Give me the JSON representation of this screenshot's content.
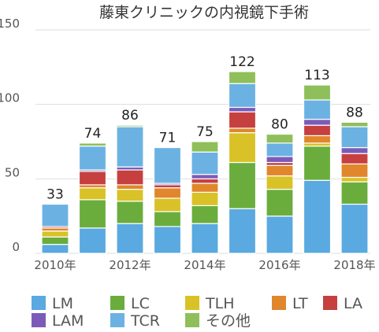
{
  "chart_data": {
    "type": "bar",
    "stacked": true,
    "title": "藤東クリニックの内視鏡下手術",
    "categories": [
      "2010",
      "2011",
      "2012",
      "2013",
      "2014",
      "2015",
      "2016",
      "2017",
      "2018"
    ],
    "x_tick_labels": [
      "2010年",
      "",
      "2012年",
      "",
      "2014年",
      "",
      "2016年",
      "",
      "2018年"
    ],
    "y_ticks": [
      "0",
      "50",
      "100",
      "150"
    ],
    "ylim": [
      0,
      150
    ],
    "grid": true,
    "legend_position": "bottom",
    "totals": [
      33,
      74,
      86,
      71,
      75,
      122,
      80,
      113,
      88
    ],
    "series": [
      {
        "name": "LM",
        "color": "#5aa9e0",
        "values": [
          6,
          17,
          20,
          18,
          20,
          30,
          25,
          49,
          33
        ]
      },
      {
        "name": "LC",
        "color": "#6aad3d",
        "values": [
          5,
          19,
          15,
          10,
          12,
          31,
          18,
          23,
          15
        ]
      },
      {
        "name": "TLH",
        "color": "#d9c227",
        "values": [
          4,
          8,
          8,
          9,
          9,
          20,
          9,
          2,
          3
        ]
      },
      {
        "name": "LT",
        "color": "#e0862c",
        "values": [
          2,
          2,
          3,
          7,
          6,
          3,
          7,
          5,
          9
        ]
      },
      {
        "name": "LA",
        "color": "#c64040",
        "values": [
          1,
          9,
          10,
          2,
          3,
          11,
          2,
          7,
          7
        ]
      },
      {
        "name": "LAM",
        "color": "#7a5cb8",
        "values": [
          0,
          1,
          2,
          1,
          3,
          3,
          4,
          4,
          4
        ]
      },
      {
        "name": "TCR",
        "color": "#6bb2e3",
        "values": [
          15,
          16,
          27,
          24,
          15,
          16,
          9,
          13,
          14
        ]
      },
      {
        "name": "その他",
        "color": "#8fbf5a",
        "values": [
          0,
          2,
          1,
          0,
          7,
          8,
          6,
          10,
          3
        ]
      }
    ]
  }
}
